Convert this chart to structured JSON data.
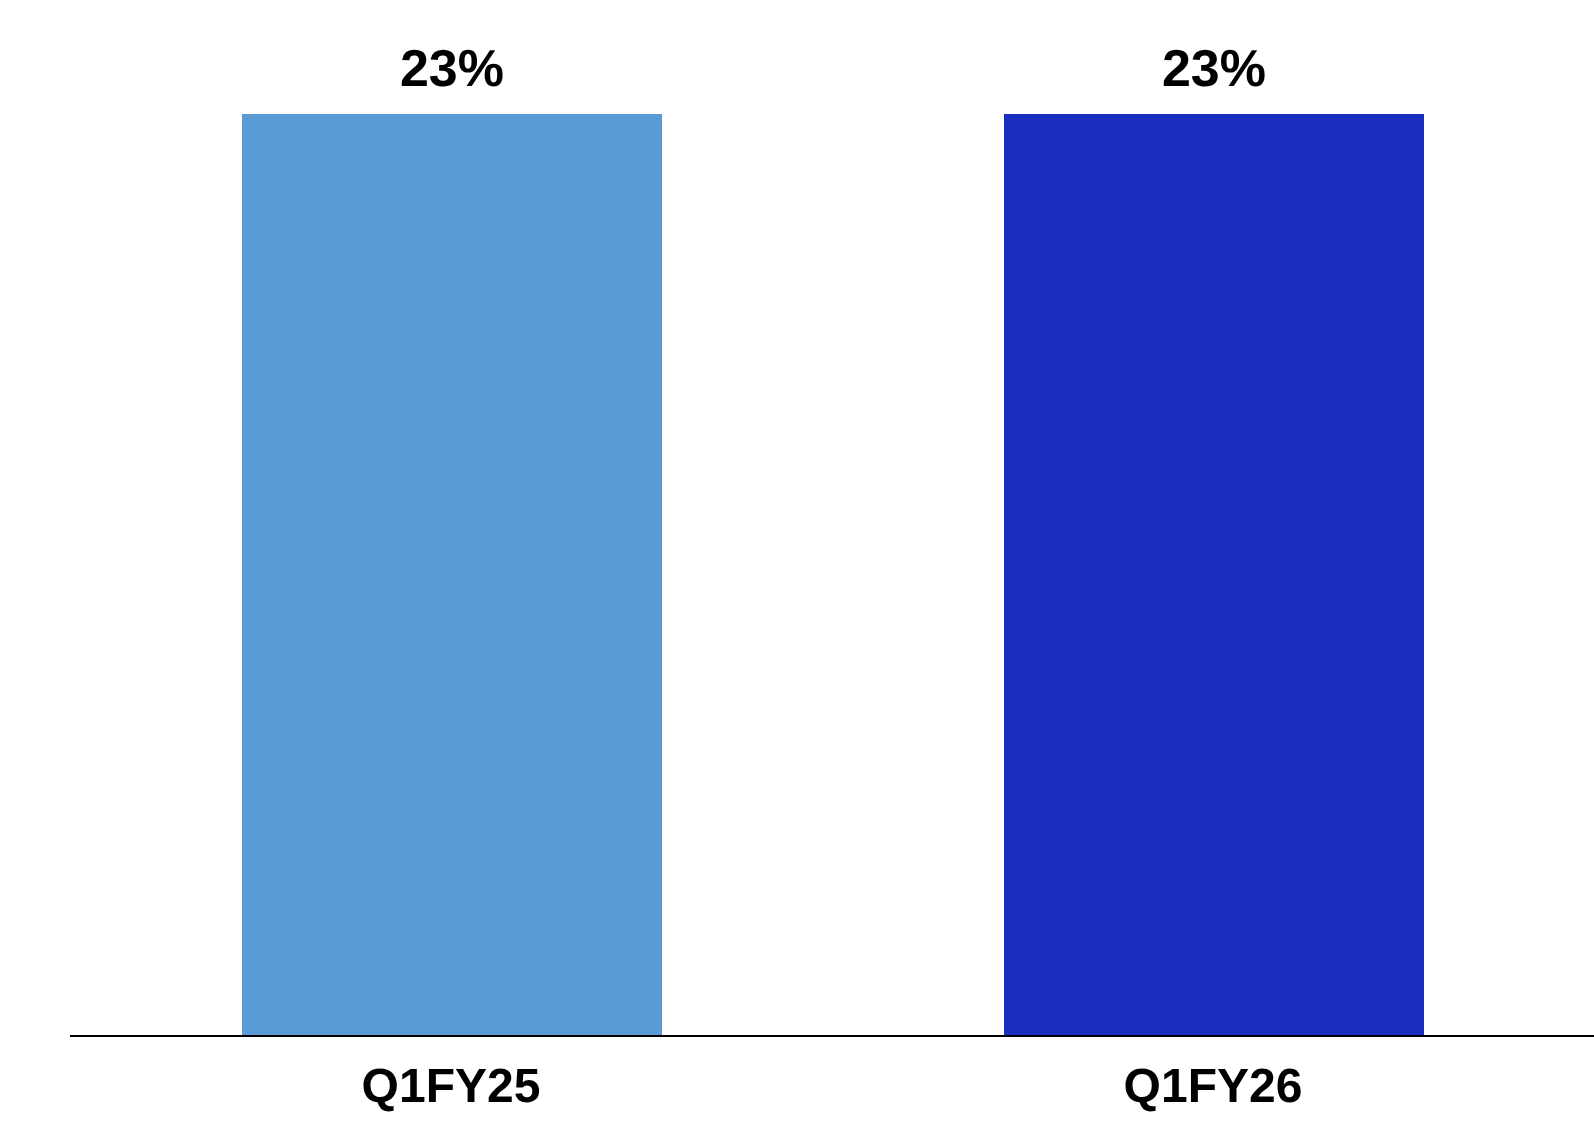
{
  "chart_data": {
    "type": "bar",
    "categories": [
      "Q1FY25",
      "Q1FY26"
    ],
    "values": [
      23,
      23
    ],
    "value_labels": [
      "23%",
      "23%"
    ],
    "colors": [
      "#5b9bd5",
      "#1a2fc0"
    ],
    "grid": false,
    "legend": false
  }
}
